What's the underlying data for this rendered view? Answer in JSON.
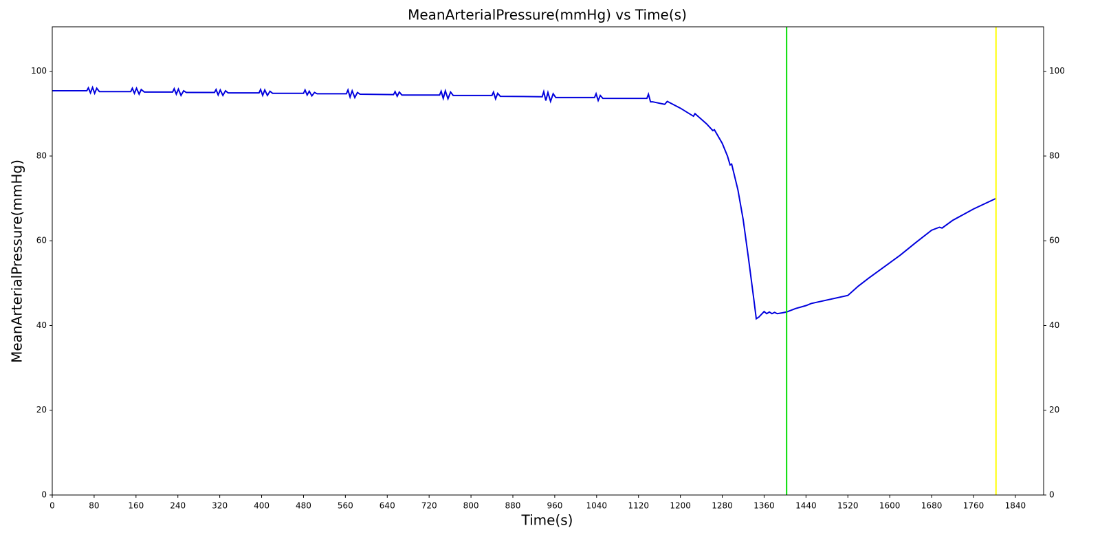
{
  "chart_data": {
    "type": "line",
    "title": "MeanArterialPressure(mmHg) vs Time(s)",
    "x_label": "Time(s)",
    "y_label": "MeanArterialPressure(mmHg)",
    "xlim": [
      0,
      1894
    ],
    "ylim": [
      0,
      110.5
    ],
    "xticks": [
      0,
      80,
      160,
      240,
      320,
      400,
      480,
      560,
      640,
      720,
      800,
      880,
      960,
      1040,
      1120,
      1200,
      1280,
      1360,
      1440,
      1520,
      1600,
      1680,
      1760,
      1840
    ],
    "yticks": [
      0,
      20,
      40,
      60,
      80,
      100
    ],
    "vlines": [
      {
        "x": 1403,
        "color": "#00dd00"
      },
      {
        "x": 1803,
        "color": "#ffff00"
      }
    ],
    "series": [
      {
        "name": "MeanArterialPressure(mmHg)",
        "color": "#0000dd",
        "x": [
          0,
          66,
          69,
          73,
          77,
          81,
          85,
          90,
          150,
          153,
          157,
          161,
          166,
          170,
          176,
          230,
          233,
          237,
          241,
          246,
          251,
          256,
          310,
          313,
          317,
          321,
          326,
          331,
          336,
          395,
          398,
          402,
          406,
          411,
          416,
          421,
          480,
          483,
          487,
          491,
          496,
          501,
          506,
          562,
          565,
          569,
          573,
          578,
          583,
          588,
          652,
          655,
          659,
          663,
          668,
          740,
          743,
          747,
          751,
          756,
          761,
          766,
          840,
          843,
          847,
          851,
          856,
          936,
          939,
          943,
          947,
          952,
          957,
          962,
          1036,
          1039,
          1043,
          1047,
          1052,
          1136,
          1139,
          1143,
          1147,
          1170,
          1175,
          1200,
          1225,
          1228,
          1250,
          1262,
          1265,
          1280,
          1290,
          1295,
          1298,
          1310,
          1320,
          1330,
          1340,
          1345,
          1350,
          1360,
          1365,
          1370,
          1375,
          1380,
          1385,
          1395,
          1403,
          1420,
          1440,
          1450,
          1520,
          1540,
          1560,
          1600,
          1620,
          1650,
          1680,
          1695,
          1700,
          1720,
          1760,
          1803
        ],
        "values": [
          95.4,
          95.4,
          96.1,
          94.9,
          96.2,
          94.8,
          96.0,
          95.2,
          95.2,
          96.0,
          94.8,
          96.0,
          94.6,
          95.7,
          95.1,
          95.1,
          95.9,
          94.6,
          95.8,
          94.3,
          95.4,
          95.0,
          95.0,
          95.7,
          94.4,
          95.6,
          94.3,
          95.4,
          94.9,
          94.9,
          95.7,
          94.3,
          95.6,
          94.3,
          95.3,
          94.8,
          94.8,
          95.6,
          94.4,
          95.3,
          94.2,
          95.0,
          94.7,
          94.7,
          95.6,
          93.9,
          95.4,
          93.8,
          95.0,
          94.6,
          94.5,
          95.2,
          94.1,
          95.1,
          94.4,
          94.4,
          95.3,
          93.6,
          95.4,
          93.5,
          95.1,
          94.3,
          94.3,
          95.1,
          93.5,
          94.8,
          94.1,
          94.0,
          95.2,
          93.1,
          95.0,
          92.9,
          94.7,
          93.8,
          93.8,
          94.7,
          93.1,
          94.3,
          93.6,
          93.6,
          94.6,
          92.8,
          92.8,
          92.2,
          92.9,
          91.3,
          89.4,
          90.0,
          87.6,
          86.0,
          86.2,
          83.0,
          80.0,
          77.9,
          78.1,
          72.0,
          65.0,
          56.0,
          46.5,
          41.6,
          42.0,
          43.3,
          42.8,
          43.2,
          42.8,
          43.1,
          42.8,
          43.0,
          43.2,
          44.0,
          44.7,
          45.2,
          47.1,
          49.3,
          51.2,
          54.8,
          56.6,
          59.6,
          62.5,
          63.2,
          63.0,
          64.8,
          67.5,
          70.0
        ]
      }
    ]
  }
}
